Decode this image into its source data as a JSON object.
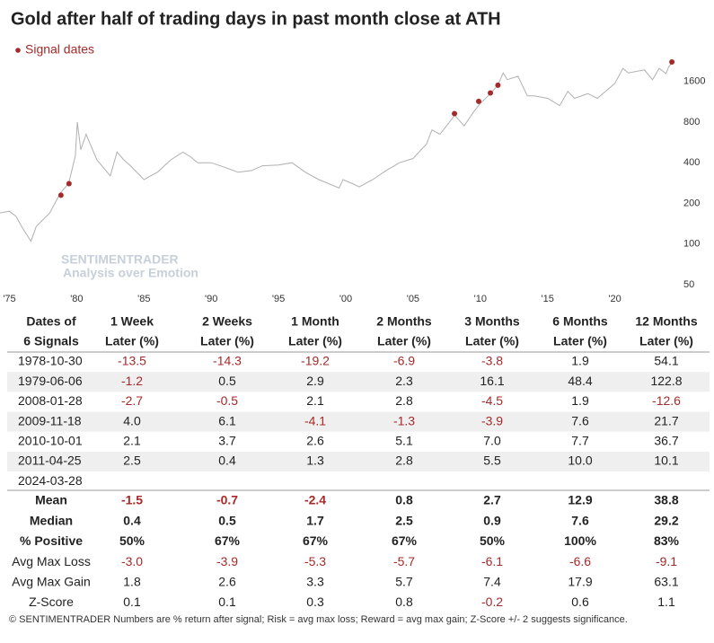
{
  "chart_data": {
    "type": "line",
    "title": "Gold after half of trading days in past month close at ATH",
    "log_scale": true,
    "grid": false,
    "xlim": [
      1974.3,
      2024.7
    ],
    "xticks": [
      {
        "value": 1975,
        "label": "'75"
      },
      {
        "value": 1980,
        "label": "'80"
      },
      {
        "value": 1985,
        "label": "'85"
      },
      {
        "value": 1990,
        "label": "'90"
      },
      {
        "value": 1995,
        "label": "'95"
      },
      {
        "value": 2000,
        "label": "'00"
      },
      {
        "value": 2005,
        "label": "'05"
      },
      {
        "value": 2010,
        "label": "'10"
      },
      {
        "value": 2015,
        "label": "'15"
      },
      {
        "value": 2020,
        "label": "'20"
      }
    ],
    "ylim": [
      50,
      2600
    ],
    "yticks": [
      50,
      100,
      200,
      400,
      800,
      1600
    ],
    "watermark": [
      "SENTIMENTRADER",
      "Analysis over Emotion"
    ],
    "series": [
      {
        "color": "#b0b0b0",
        "x": [
          1974.3,
          1975,
          1975.5,
          1976,
          1976.6,
          1977,
          1978,
          1978.8,
          1979.4,
          1979.9,
          1980.05,
          1980.3,
          1980.7,
          1981,
          1981.5,
          1982.5,
          1983,
          1983.5,
          1984,
          1985,
          1985.5,
          1986,
          1987,
          1987.9,
          1988.5,
          1989,
          1990,
          1991,
          1992,
          1993,
          1993.8,
          1995,
          1996,
          1997,
          1998,
          1999.5,
          1999.8,
          2000.5,
          2001,
          2002,
          2003,
          2004,
          2005,
          2006,
          2006.4,
          2007,
          2008.1,
          2008.8,
          2009.5,
          2010,
          2010.75,
          2011.3,
          2011.7,
          2012,
          2012.8,
          2013.5,
          2014,
          2015,
          2015.9,
          2016.5,
          2017,
          2018,
          2018.7,
          2019.5,
          2020,
          2020.6,
          2021,
          2022.2,
          2022.8,
          2023.3,
          2023.8,
          2024,
          2024.25
        ],
        "values": [
          170,
          175,
          160,
          130,
          105,
          135,
          170,
          240,
          280,
          450,
          800,
          500,
          650,
          550,
          420,
          320,
          480,
          420,
          380,
          300,
          320,
          340,
          420,
          480,
          440,
          400,
          400,
          370,
          340,
          350,
          380,
          385,
          400,
          340,
          300,
          260,
          300,
          280,
          265,
          300,
          350,
          400,
          430,
          550,
          700,
          650,
          900,
          750,
          950,
          1100,
          1300,
          1500,
          1850,
          1650,
          1750,
          1250,
          1250,
          1200,
          1060,
          1350,
          1200,
          1300,
          1200,
          1400,
          1550,
          2000,
          1850,
          1950,
          1650,
          2000,
          1830,
          2050,
          2200
        ]
      },
      {
        "name": "Signal dates",
        "color": "#a52a2a",
        "x": [
          1978.83,
          1979.43,
          2008.08,
          2009.88,
          2010.75,
          2011.31,
          2024.24
        ],
        "values": [
          230,
          280,
          925,
          1140,
          1315,
          1500,
          2230
        ]
      }
    ]
  },
  "table": {
    "headers": [
      [
        "Dates of",
        "6 Signals"
      ],
      [
        "1 Week",
        "Later (%)"
      ],
      [
        "2 Weeks",
        "Later (%)"
      ],
      [
        "1 Month",
        "Later (%)"
      ],
      [
        "2 Months",
        "Later (%)"
      ],
      [
        "3 Months",
        "Later (%)"
      ],
      [
        "6 Months",
        "Later (%)"
      ],
      [
        "12 Months",
        "Later (%)"
      ]
    ],
    "rows": [
      [
        "1978-10-30",
        "-13.5",
        "-14.3",
        "-19.2",
        "-6.9",
        "-3.8",
        "1.9",
        "54.1"
      ],
      [
        "1979-06-06",
        "-1.2",
        "0.5",
        "2.9",
        "2.3",
        "16.1",
        "48.4",
        "122.8"
      ],
      [
        "2008-01-28",
        "-2.7",
        "-0.5",
        "2.1",
        "2.8",
        "-4.5",
        "1.9",
        "-12.6"
      ],
      [
        "2009-11-18",
        "4.0",
        "6.1",
        "-4.1",
        "-1.3",
        "-3.9",
        "7.6",
        "21.7"
      ],
      [
        "2010-10-01",
        "2.1",
        "3.7",
        "2.6",
        "5.1",
        "7.0",
        "7.7",
        "36.7"
      ],
      [
        "2011-04-25",
        "2.5",
        "0.4",
        "1.3",
        "2.8",
        "5.5",
        "10.0",
        "10.1"
      ],
      [
        "2024-03-28",
        null,
        null,
        null,
        null,
        null,
        null,
        null
      ]
    ],
    "summary": [
      [
        "Mean",
        "-1.5",
        "-0.7",
        "-2.4",
        "0.8",
        "2.7",
        "12.9",
        "38.8"
      ],
      [
        "Median",
        "0.4",
        "0.5",
        "1.7",
        "2.5",
        "0.9",
        "7.6",
        "29.2"
      ],
      [
        "% Positive",
        "50%",
        "67%",
        "67%",
        "67%",
        "50%",
        "100%",
        "83%"
      ],
      [
        "Avg Max Loss",
        "-3.0",
        "-3.9",
        "-5.3",
        "-5.7",
        "-6.1",
        "-6.6",
        "-9.1"
      ],
      [
        "Avg Max Gain",
        "1.8",
        "2.6",
        "3.3",
        "5.7",
        "7.4",
        "17.9",
        "63.1"
      ],
      [
        "Z-Score",
        "0.1",
        "0.1",
        "0.3",
        "0.8",
        "-0.2",
        "0.6",
        "1.1"
      ]
    ],
    "footnote": "© SENTIMENTRADER  Numbers are % return after signal; Risk = avg max loss; Reward = avg max gain; Z-Score +/- 2 suggests significance."
  }
}
